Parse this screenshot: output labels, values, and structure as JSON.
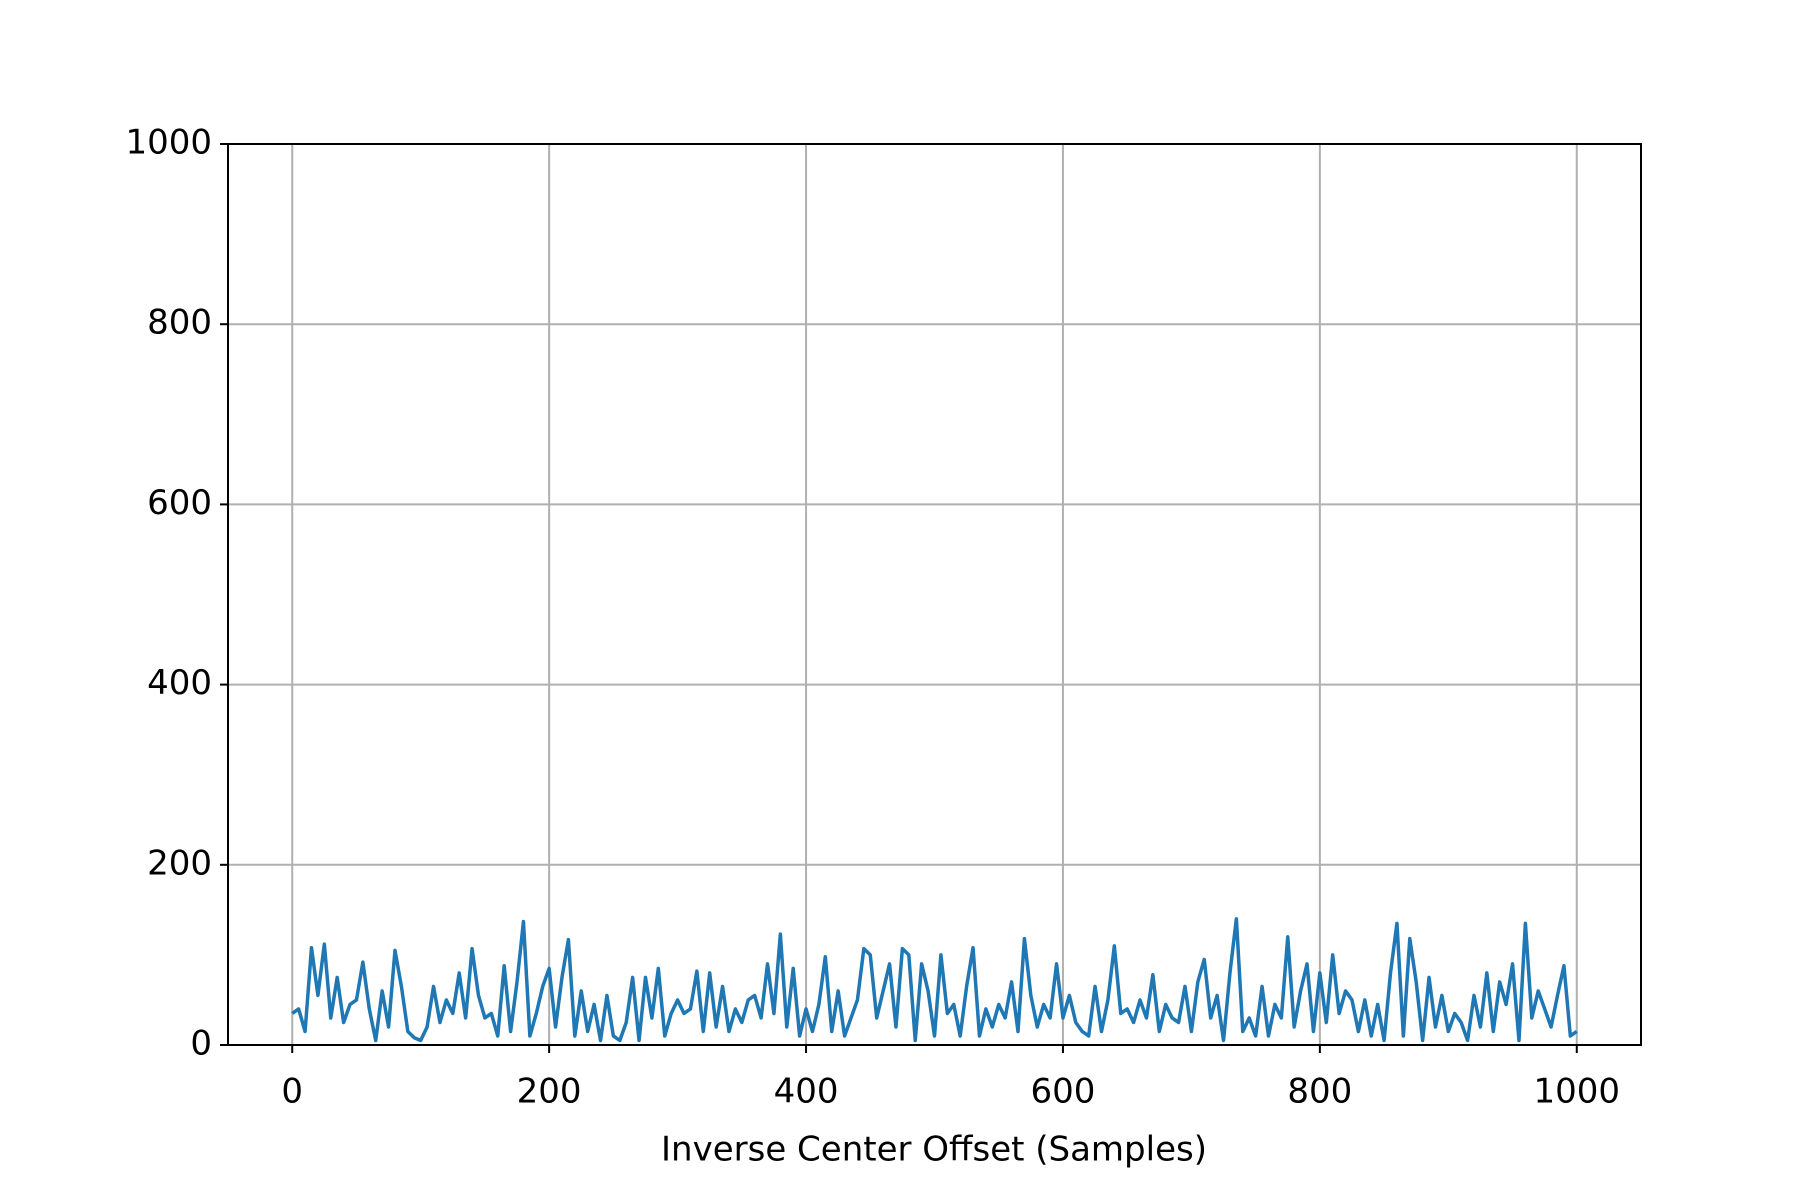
{
  "chart_data": {
    "type": "line",
    "x_label": "Inverse Center Offset (Samples)",
    "x": [
      0,
      5,
      10,
      15,
      20,
      25,
      30,
      35,
      40,
      45,
      50,
      55,
      60,
      65,
      70,
      75,
      80,
      85,
      90,
      95,
      100,
      105,
      110,
      115,
      120,
      125,
      130,
      135,
      140,
      145,
      150,
      155,
      160,
      165,
      170,
      175,
      180,
      185,
      190,
      195,
      200,
      205,
      210,
      215,
      220,
      225,
      230,
      235,
      240,
      245,
      250,
      255,
      260,
      265,
      270,
      275,
      280,
      285,
      290,
      295,
      300,
      305,
      310,
      315,
      320,
      325,
      330,
      335,
      340,
      345,
      350,
      355,
      360,
      365,
      370,
      375,
      380,
      385,
      390,
      395,
      400,
      405,
      410,
      415,
      420,
      425,
      430,
      435,
      440,
      445,
      450,
      455,
      460,
      465,
      470,
      475,
      480,
      485,
      490,
      495,
      500,
      505,
      510,
      515,
      520,
      525,
      530,
      535,
      540,
      545,
      550,
      555,
      560,
      565,
      570,
      575,
      580,
      585,
      590,
      595,
      600,
      605,
      610,
      615,
      620,
      625,
      630,
      635,
      640,
      645,
      650,
      655,
      660,
      665,
      670,
      675,
      680,
      685,
      690,
      695,
      700,
      705,
      710,
      715,
      720,
      725,
      730,
      735,
      740,
      745,
      750,
      755,
      760,
      765,
      770,
      775,
      780,
      785,
      790,
      795,
      800,
      805,
      810,
      815,
      820,
      825,
      830,
      835,
      840,
      845,
      850,
      855,
      860,
      865,
      870,
      875,
      880,
      885,
      890,
      895,
      900,
      905,
      910,
      915,
      920,
      925,
      930,
      935,
      940,
      945,
      950,
      955,
      960,
      965,
      970,
      975,
      980,
      985,
      990,
      995,
      1000
    ],
    "values": [
      35,
      40,
      15,
      108,
      55,
      112,
      30,
      75,
      25,
      45,
      50,
      92,
      40,
      5,
      60,
      20,
      105,
      65,
      15,
      8,
      5,
      20,
      65,
      25,
      50,
      35,
      80,
      30,
      107,
      55,
      30,
      35,
      10,
      88,
      15,
      70,
      137,
      10,
      35,
      65,
      85,
      20,
      75,
      117,
      10,
      60,
      15,
      45,
      5,
      55,
      10,
      5,
      25,
      75,
      5,
      75,
      30,
      85,
      10,
      35,
      50,
      35,
      40,
      82,
      15,
      80,
      20,
      65,
      15,
      40,
      25,
      50,
      55,
      30,
      90,
      35,
      123,
      20,
      85,
      10,
      40,
      15,
      45,
      98,
      15,
      60,
      10,
      30,
      50,
      107,
      100,
      30,
      60,
      90,
      20,
      107,
      100,
      5,
      90,
      60,
      10,
      100,
      35,
      45,
      10,
      65,
      108,
      10,
      40,
      20,
      45,
      30,
      70,
      15,
      118,
      55,
      20,
      45,
      30,
      90,
      30,
      55,
      25,
      15,
      10,
      65,
      15,
      50,
      110,
      35,
      40,
      25,
      50,
      30,
      78,
      15,
      45,
      30,
      25,
      65,
      15,
      70,
      95,
      30,
      55,
      5,
      80,
      140,
      15,
      30,
      10,
      65,
      10,
      45,
      30,
      120,
      20,
      60,
      90,
      15,
      80,
      25,
      100,
      35,
      60,
      50,
      15,
      50,
      10,
      45,
      5,
      80,
      135,
      10,
      118,
      70,
      5,
      75,
      20,
      55,
      15,
      35,
      25,
      5,
      55,
      20,
      80,
      15,
      70,
      45,
      90,
      5,
      135,
      30,
      60,
      40,
      20,
      55,
      88,
      10,
      15
    ],
    "color": "#1f77b4",
    "xlim": [
      -50,
      1050
    ],
    "xticks": [
      0,
      200,
      400,
      600,
      800,
      1000
    ],
    "ylim": [
      0,
      1000
    ],
    "yticks": [
      0,
      200,
      400,
      600,
      800,
      1000
    ],
    "grid": true
  }
}
